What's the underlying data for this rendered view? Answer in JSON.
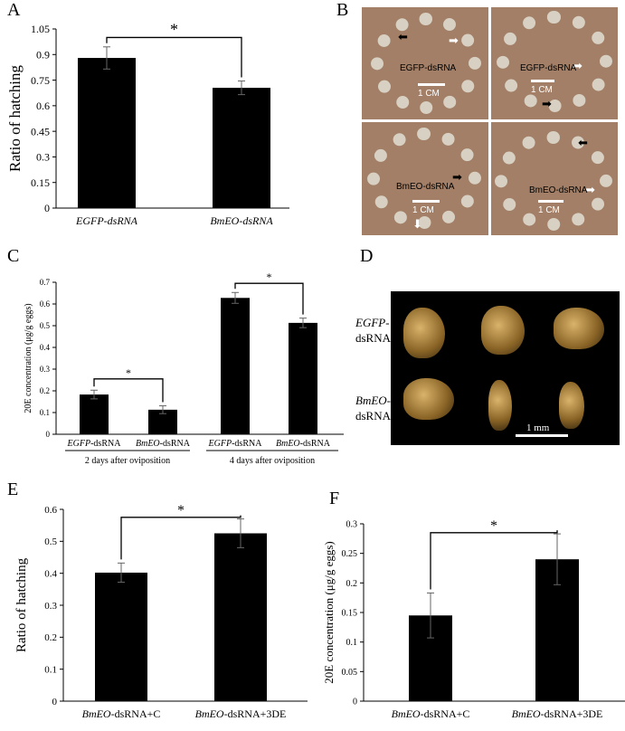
{
  "panels": {
    "A": "A",
    "B": "B",
    "C": "C",
    "D": "D",
    "E": "E",
    "F": "F"
  },
  "chart_data": [
    {
      "id": "A",
      "type": "bar",
      "categories": [
        "EGFP-dsRNA",
        "BmEO-dsRNA"
      ],
      "values": [
        0.88,
        0.705
      ],
      "errors": [
        0.065,
        0.04
      ],
      "ylabel": "Ratio of hatching",
      "ylim": [
        0,
        1.05
      ],
      "yticks": [
        "0",
        "0.15",
        "0.3",
        "0.45",
        "0.6",
        "0.75",
        "0.9",
        "1.05"
      ],
      "significance": "*",
      "grid": false
    },
    {
      "id": "C",
      "type": "bar",
      "categories": [
        "EGFP-dsRNA",
        "BmEO-dsRNA",
        "EGFP-dsRNA",
        "BmEO-dsRNA"
      ],
      "values": [
        0.183,
        0.113,
        0.628,
        0.513
      ],
      "errors": [
        0.02,
        0.018,
        0.025,
        0.022
      ],
      "ylabel": "20E concentration (μg/g eggs)",
      "ylim": [
        0,
        0.7
      ],
      "yticks": [
        "0",
        "0.1",
        "0.2",
        "0.3",
        "0.4",
        "0.5",
        "0.6",
        "0.7"
      ],
      "groups": [
        "2 days after oviposition",
        "4 days after oviposition"
      ],
      "significance": "*",
      "grid": false
    },
    {
      "id": "E",
      "type": "bar",
      "categories": [
        "BmEO-dsRNA+C",
        "BmEO-dsRNA+3DE"
      ],
      "values": [
        0.402,
        0.525
      ],
      "errors": [
        0.03,
        0.045
      ],
      "ylabel": "Ratio of hatching",
      "ylim": [
        0,
        0.6
      ],
      "yticks": [
        "0",
        "0.1",
        "0.2",
        "0.3",
        "0.4",
        "0.5",
        "0.6"
      ],
      "significance": "*",
      "grid": false
    },
    {
      "id": "F",
      "type": "bar",
      "categories": [
        "BmEO-dsRNA+C",
        "BmEO-dsRNA+3DE"
      ],
      "values": [
        0.145,
        0.24
      ],
      "errors": [
        0.038,
        0.043
      ],
      "ylabel": "20E concentration (μg/g eggs)",
      "ylim": [
        0,
        0.3
      ],
      "yticks": [
        "0",
        "0.05",
        "0.1",
        "0.15",
        "0.2",
        "0.25",
        "0.3"
      ],
      "significance": "*",
      "grid": false
    }
  ],
  "photoB": {
    "labels": [
      "EGFP-dsRNA",
      "EGFP-dsRNA",
      "BmEO-dsRNA",
      "BmEO-dsRNA"
    ],
    "scale": "1 CM"
  },
  "photoD": {
    "row_labels": [
      "EGFP-dsRNA",
      "BmEO-dsRNA"
    ],
    "scale": "1 mm"
  }
}
